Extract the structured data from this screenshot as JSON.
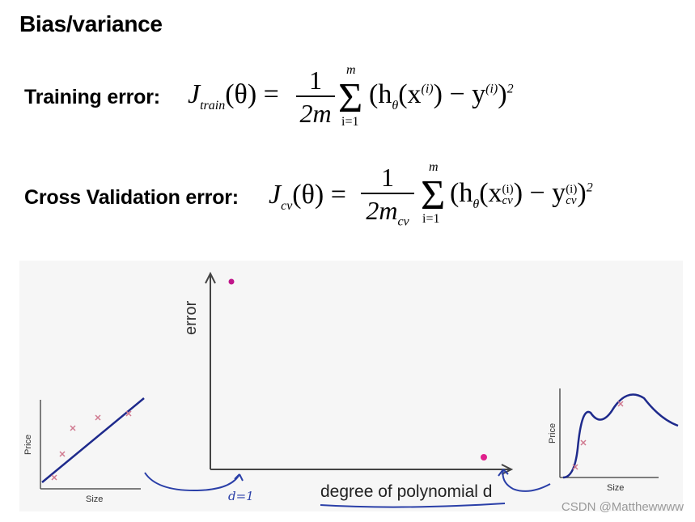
{
  "title": "Bias/variance",
  "training": {
    "label": "Training error:",
    "J": "J",
    "sub": "train",
    "lhs_rest": "(θ) =",
    "num": "1",
    "den": "2m",
    "sum_top": "m",
    "sum_bottom": "i=1",
    "body": "(h",
    "body_sub": "θ",
    "body_rest": "(x",
    "body_sup": "(i)",
    "body_minus": ") − y",
    "body_sup2": "(i)",
    "body_end": ")",
    "power": "2"
  },
  "cv": {
    "label": "Cross Validation error:",
    "J": "J",
    "sub": "cv",
    "lhs_rest": "(θ) =",
    "num": "1",
    "den": "2m",
    "den_sub": "cv",
    "sum_top": "m",
    "sum_bottom": "i=1",
    "body": "(h",
    "body_sub": "θ",
    "body_rest": "(x",
    "body_sup": "(i)",
    "body_subcv": "cv",
    "body_minus": ") − y",
    "body_sup2": "(i)",
    "body_subcv2": "cv",
    "body_end": ")",
    "power": "2"
  },
  "diagram": {
    "y_axis_label": "error",
    "x_axis_label": "degree of polynomial d",
    "handwritten_note": "d=1",
    "left_plot": {
      "x_label": "Size",
      "y_label": "Price"
    },
    "right_plot": {
      "x_label": "Size",
      "y_label": "Price"
    }
  },
  "watermark": "CSDN @Matthewwww",
  "colors": {
    "ink_blue": "#2a3fa8",
    "point_magenta": "#c0168a",
    "cross": "#d07a90",
    "curve": "#1e2a8c"
  }
}
